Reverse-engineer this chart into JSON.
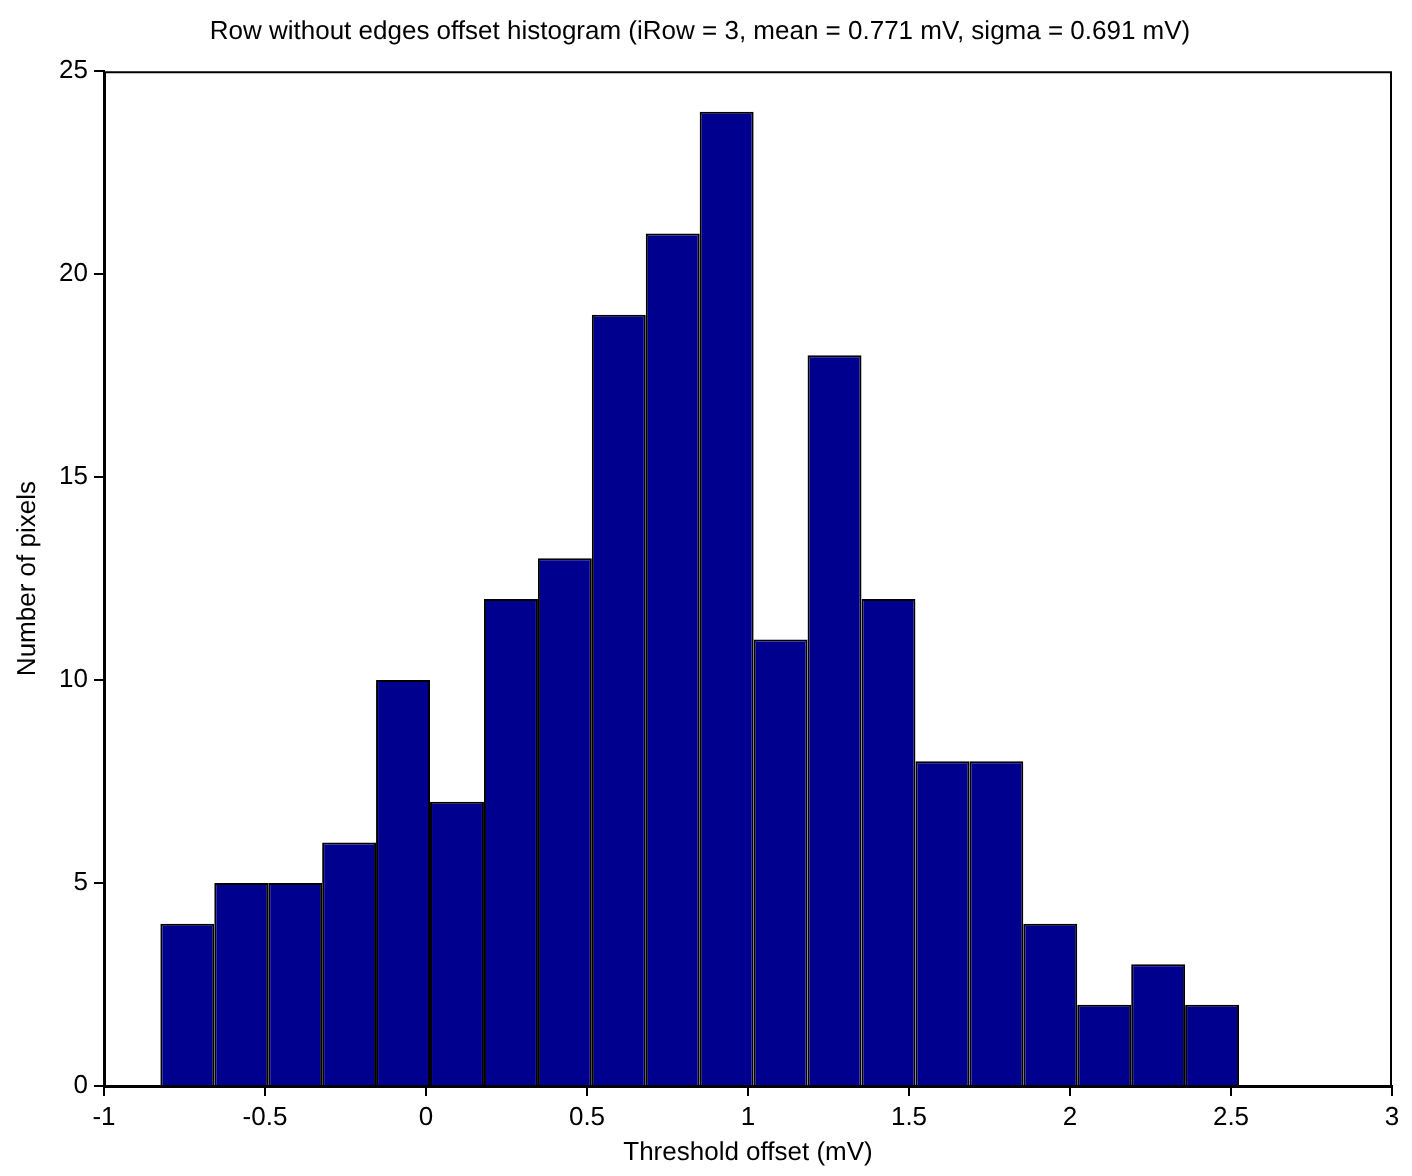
{
  "chart_data": {
    "type": "histogram",
    "title": "Row without edges offset histogram (iRow = 3, mean = 0.771 mV, sigma = 0.691 mV)",
    "xlabel": "Threshold offset (mV)",
    "ylabel": "Number of pixels",
    "bins": [
      -0.825,
      -0.6575,
      -0.49,
      -0.3225,
      -0.155,
      0.0125,
      0.18,
      0.3475,
      0.515,
      0.6825,
      0.85,
      1.0175,
      1.185,
      1.3525,
      1.52,
      1.6875,
      1.855,
      2.0225,
      2.19,
      2.3575,
      2.525
    ],
    "values": [
      4,
      5,
      5,
      6,
      10,
      7,
      12,
      13,
      19,
      21,
      24,
      11,
      18,
      12,
      8,
      8,
      4,
      2,
      3,
      2
    ],
    "color": "#00008f",
    "xlim": [
      -1,
      3
    ],
    "xticks": [
      -1,
      -0.5,
      0,
      0.5,
      1,
      1.5,
      2,
      2.5,
      3
    ],
    "ylim": [
      0,
      25
    ],
    "yticks": [
      0,
      5,
      10,
      15,
      20,
      25
    ],
    "grid": false,
    "legend": false
  }
}
